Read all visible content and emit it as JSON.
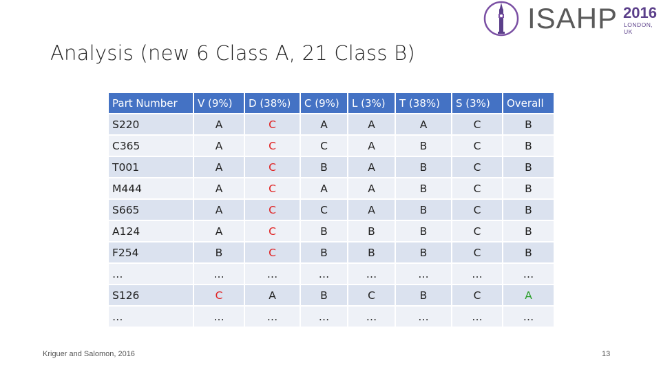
{
  "slide": {
    "title": "Analysis (new 6 Class A, 21 Class B)",
    "footer": "Kriguer and Salomon, 2016",
    "page_number": "13"
  },
  "logo": {
    "text": "ISAHP",
    "year": "2016",
    "city": "LONDON, UK",
    "icon": "big-ben-icon",
    "accent_color": "#5b3f8a"
  },
  "colors": {
    "header_bg": "#4472c4",
    "row_dark": "#dbe2ef",
    "row_light": "#eef1f7",
    "red": "#e02020",
    "green": "#2ca02c"
  },
  "table": {
    "headers": [
      "Part Number",
      "V (9%)",
      "D (38%)",
      "C (9%)",
      "L (3%)",
      "T (38%)",
      "S (3%)",
      "Overall"
    ],
    "rows": [
      [
        "S220",
        "A",
        "C",
        "A",
        "A",
        "A",
        "C",
        "B"
      ],
      [
        "C365",
        "A",
        "C",
        "C",
        "A",
        "B",
        "C",
        "B"
      ],
      [
        "T001",
        "A",
        "C",
        "B",
        "A",
        "B",
        "C",
        "B"
      ],
      [
        "M444",
        "A",
        "C",
        "A",
        "A",
        "B",
        "C",
        "B"
      ],
      [
        "S665",
        "A",
        "C",
        "C",
        "A",
        "B",
        "C",
        "B"
      ],
      [
        "A124",
        "A",
        "C",
        "B",
        "B",
        "B",
        "C",
        "B"
      ],
      [
        "F254",
        "B",
        "C",
        "B",
        "B",
        "B",
        "C",
        "B"
      ],
      [
        "…",
        "…",
        "…",
        "…",
        "…",
        "…",
        "…",
        "…"
      ],
      [
        "S126",
        "C",
        "A",
        "B",
        "C",
        "B",
        "C",
        "A"
      ],
      [
        "…",
        "…",
        "…",
        "…",
        "…",
        "…",
        "…",
        "…"
      ]
    ]
  }
}
